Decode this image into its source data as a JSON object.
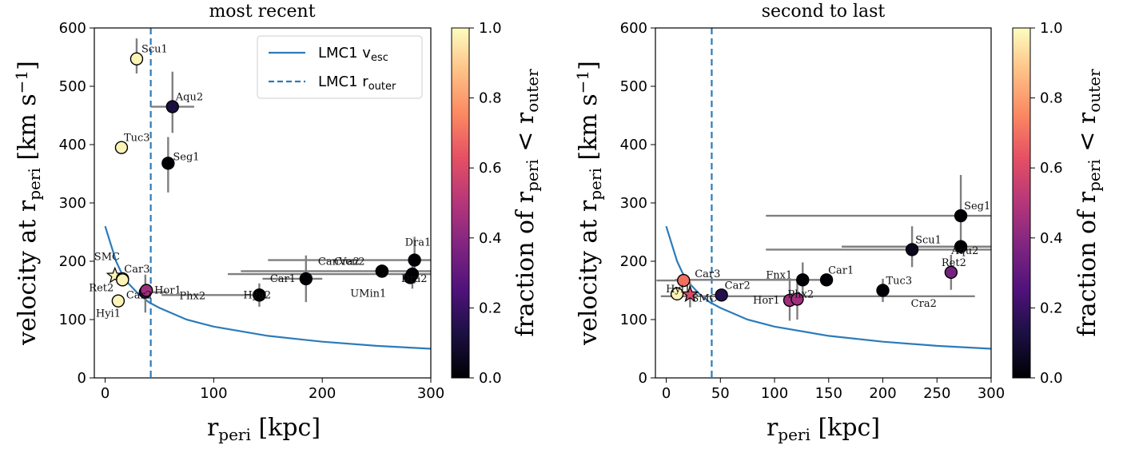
{
  "chart_data": [
    {
      "type": "scatter",
      "title": "most recent",
      "xlabel": "r_peri [kpc]",
      "ylabel": "velocity at r_peri [km s^-1]",
      "xlim": [
        -10,
        300
      ],
      "ylim": [
        0,
        600
      ],
      "xticks": [
        0,
        100,
        200,
        300
      ],
      "yticks": [
        0,
        100,
        200,
        300,
        400,
        500,
        600
      ],
      "legend": {
        "placement": "top-right",
        "entries": [
          "LMC1 v_esc",
          "LMC1 r_outer"
        ]
      },
      "vesc_curve": {
        "label": "LMC1 v_esc",
        "color": "#2b7bba",
        "x": [
          0,
          5,
          10,
          15,
          20,
          30,
          40,
          50,
          75,
          100,
          150,
          200,
          250,
          300
        ],
        "y": [
          260,
          230,
          200,
          180,
          165,
          145,
          130,
          120,
          100,
          88,
          72,
          62,
          55,
          50
        ]
      },
      "router_line": {
        "label": "LMC1 r_outer",
        "x": 42,
        "color": "#2b7bba"
      },
      "colorbar": {
        "label": "fraction of r_peri < r_outer",
        "ticks": [
          "0.0",
          "0.2",
          "0.4",
          "0.6",
          "0.8",
          "1.0"
        ]
      },
      "points": [
        {
          "name": "Scu1",
          "x": 29,
          "y": 547,
          "frac": 0.98,
          "xerr": [
            0,
            0
          ],
          "yerr": [
            25,
            35
          ],
          "shape": "circle"
        },
        {
          "name": "Aqu2",
          "x": 62,
          "y": 465,
          "frac": 0.12,
          "xerr": [
            20,
            20
          ],
          "yerr": [
            45,
            60
          ],
          "shape": "circle"
        },
        {
          "name": "Tuc3",
          "x": 15,
          "y": 395,
          "frac": 0.98,
          "xerr": [
            0,
            0
          ],
          "yerr": [
            0,
            0
          ],
          "shape": "circle"
        },
        {
          "name": "Seg1",
          "x": 58,
          "y": 368,
          "frac": 0.0,
          "xerr": [
            5,
            5
          ],
          "yerr": [
            50,
            45
          ],
          "shape": "circle"
        },
        {
          "name": "SMC",
          "x": 9,
          "y": 175,
          "frac": 0.98,
          "xerr": [
            0,
            0
          ],
          "yerr": [
            0,
            0
          ],
          "shape": "star"
        },
        {
          "name": "Car3",
          "x": 16,
          "y": 170,
          "frac": 0.98,
          "xerr": [
            0,
            0
          ],
          "yerr": [
            0,
            0
          ],
          "shape": "circle"
        },
        {
          "name": "Ret2",
          "x": 16,
          "y": 168,
          "frac": 0.98,
          "xerr": [
            0,
            0
          ],
          "yerr": [
            0,
            0
          ],
          "shape": "circle"
        },
        {
          "name": "Hyi1",
          "x": 12,
          "y": 132,
          "frac": 0.98,
          "xerr": [
            0,
            0
          ],
          "yerr": [
            0,
            0
          ],
          "shape": "circle"
        },
        {
          "name": "Car2",
          "x": 37,
          "y": 147,
          "frac": 0.2,
          "xerr": [
            0,
            20
          ],
          "yerr": [
            35,
            30
          ],
          "shape": "circle"
        },
        {
          "name": "Hor1",
          "x": 38,
          "y": 150,
          "frac": 0.45,
          "xerr": [
            0,
            0
          ],
          "yerr": [
            0,
            0
          ],
          "shape": "circle"
        },
        {
          "name": "Phx2",
          "x": 142,
          "y": 142,
          "frac": 0.0,
          "xerr": [
            90,
            0
          ],
          "yerr": [
            20,
            20
          ],
          "shape": "circle"
        },
        {
          "name": "Hya2",
          "x": 142,
          "y": 142,
          "frac": 0.0,
          "xerr": [
            0,
            0
          ],
          "yerr": [
            0,
            0
          ],
          "shape": "circle"
        },
        {
          "name": "Car1",
          "x": 185,
          "y": 170,
          "frac": 0.0,
          "xerr": [
            40,
            15
          ],
          "yerr": [
            40,
            40
          ],
          "shape": "circle"
        },
        {
          "name": "CanVen2",
          "x": 255,
          "y": 183,
          "frac": 0.0,
          "xerr": [
            130,
            45
          ],
          "yerr": [
            0,
            0
          ],
          "shape": "circle"
        },
        {
          "name": "Cra2",
          "x": 255,
          "y": 183,
          "frac": 0.0,
          "xerr": [
            0,
            0
          ],
          "yerr": [
            0,
            0
          ],
          "shape": "circle"
        },
        {
          "name": "Dra1",
          "x": 285,
          "y": 202,
          "frac": 0.0,
          "xerr": [
            135,
            15
          ],
          "yerr": [
            40,
            40
          ],
          "shape": "circle"
        },
        {
          "name": "Dra2",
          "x": 283,
          "y": 178,
          "frac": 0.0,
          "xerr": [
            170,
            17
          ],
          "yerr": [
            25,
            25
          ],
          "shape": "circle"
        },
        {
          "name": "UMin1",
          "x": 281,
          "y": 172,
          "frac": 0.0,
          "xerr": [
            0,
            0
          ],
          "yerr": [
            0,
            0
          ],
          "shape": "circle"
        }
      ]
    },
    {
      "type": "scatter",
      "title": "second to last",
      "xlabel": "r_peri [kpc]",
      "ylabel": "velocity at r_peri [km s^-1]",
      "xlim": [
        -10,
        300
      ],
      "ylim": [
        0,
        600
      ],
      "xticks": [
        0,
        50,
        100,
        150,
        200,
        250,
        300
      ],
      "yticks": [
        0,
        100,
        200,
        300,
        400,
        500,
        600
      ],
      "vesc_curve": {
        "label": "LMC1 v_esc",
        "color": "#2b7bba",
        "x": [
          0,
          5,
          10,
          15,
          20,
          30,
          40,
          50,
          75,
          100,
          150,
          200,
          250,
          300
        ],
        "y": [
          260,
          230,
          200,
          180,
          165,
          145,
          130,
          120,
          100,
          88,
          72,
          62,
          55,
          50
        ]
      },
      "router_line": {
        "label": "LMC1 r_outer",
        "x": 42,
        "color": "#2b7bba"
      },
      "colorbar": {
        "label": "fraction of r_peri < r_outer",
        "ticks": [
          "0.0",
          "0.2",
          "0.4",
          "0.6",
          "0.8",
          "1.0"
        ]
      },
      "points": [
        {
          "name": "Seg1",
          "x": 272,
          "y": 278,
          "frac": 0.0,
          "xerr": [
            180,
            30
          ],
          "yerr": [
            60,
            70
          ],
          "shape": "circle"
        },
        {
          "name": "Scu1",
          "x": 227,
          "y": 220,
          "frac": 0.05,
          "xerr": [
            135,
            75
          ],
          "yerr": [
            30,
            40
          ],
          "shape": "circle"
        },
        {
          "name": "Aqu2",
          "x": 272,
          "y": 225,
          "frac": 0.0,
          "xerr": [
            110,
            30
          ],
          "yerr": [
            0,
            0
          ],
          "shape": "circle"
        },
        {
          "name": "Ret2",
          "x": 263,
          "y": 181,
          "frac": 0.35,
          "xerr": [
            0,
            0
          ],
          "yerr": [
            30,
            30
          ],
          "shape": "circle"
        },
        {
          "name": "Fnx1",
          "x": 126,
          "y": 168,
          "frac": 0.0,
          "xerr": [
            95,
            0
          ],
          "yerr": [
            30,
            30
          ],
          "shape": "circle"
        },
        {
          "name": "Car1",
          "x": 148,
          "y": 168,
          "frac": 0.0,
          "xerr": [
            140,
            0
          ],
          "yerr": [
            0,
            0
          ],
          "shape": "circle"
        },
        {
          "name": "Tuc3",
          "x": 200,
          "y": 150,
          "frac": 0.0,
          "xerr": [
            0,
            0
          ],
          "yerr": [
            20,
            20
          ],
          "shape": "circle"
        },
        {
          "name": "Car3",
          "x": 16,
          "y": 167,
          "frac": 0.7,
          "xerr": [
            25,
            0
          ],
          "yerr": [
            0,
            0
          ],
          "shape": "circle"
        },
        {
          "name": "Car2",
          "x": 51,
          "y": 142,
          "frac": 0.15,
          "xerr": [
            0,
            0
          ],
          "yerr": [
            0,
            0
          ],
          "shape": "circle"
        },
        {
          "name": "Hor1",
          "x": 114,
          "y": 133,
          "frac": 0.45,
          "xerr": [
            0,
            0
          ],
          "yerr": [
            35,
            35
          ],
          "shape": "circle"
        },
        {
          "name": "Phx2",
          "x": 121,
          "y": 135,
          "frac": 0.45,
          "xerr": [
            0,
            0
          ],
          "yerr": [
            35,
            35
          ],
          "shape": "circle"
        },
        {
          "name": "Hyi1",
          "x": 10,
          "y": 144,
          "frac": 0.98,
          "xerr": [
            0,
            0
          ],
          "yerr": [
            0,
            0
          ],
          "shape": "circle"
        },
        {
          "name": "SMC",
          "x": 22,
          "y": 143,
          "frac": 0.6,
          "xerr": [
            0,
            0
          ],
          "yerr": [
            22,
            22
          ],
          "shape": "star"
        },
        {
          "name": "Cra2",
          "x": 285,
          "y": 140,
          "frac": 0.0,
          "xerr": [
            290,
            0
          ],
          "yerr": [
            0,
            0
          ],
          "shape": "none"
        }
      ]
    }
  ],
  "legend_text": {
    "vesc": "LMC1 v",
    "vesc_sub": "esc",
    "router": "LMC1 r",
    "router_sub": "outer"
  },
  "axis_text": {
    "left_title": "most recent",
    "right_title": "second to last",
    "x_main": "r",
    "x_sub": "peri",
    "x_tail": " [kpc]",
    "y_main": "velocity at r",
    "y_sub": "peri",
    "y_tail": " [km s",
    "y_sup": "−1",
    "y_end": "]",
    "cb_main": "fraction of r",
    "cb_sub": "peri",
    "cb_mid": " < r",
    "cb_sub2": "outer"
  }
}
